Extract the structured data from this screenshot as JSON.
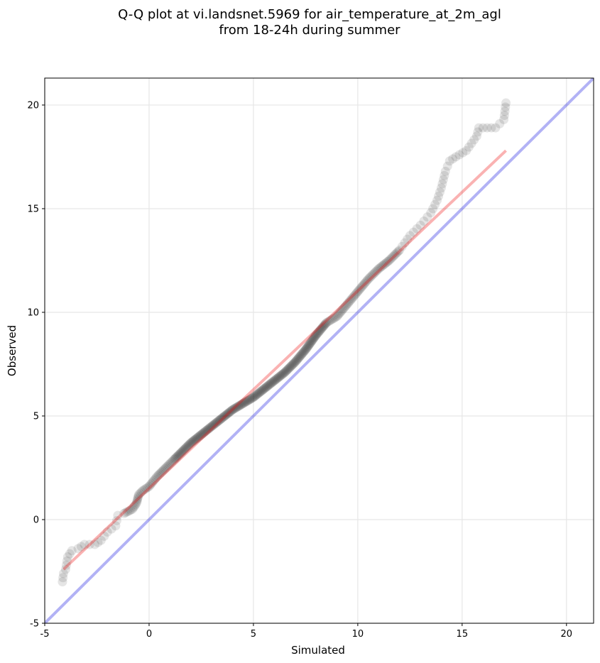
{
  "chart_data": {
    "type": "scatter",
    "title_lines": [
      "Q-Q plot at vi.landsnet.5969 for air_temperature_at_2m_agl",
      "from 18-24h during summer"
    ],
    "xlabel": "Simulated",
    "ylabel": "Observed",
    "xlim": [
      -5,
      21.3
    ],
    "ylim": [
      -5,
      21.3
    ],
    "xticks": [
      -5,
      0,
      5,
      10,
      15,
      20
    ],
    "yticks": [
      -5,
      0,
      5,
      10,
      15,
      20
    ],
    "grid": true,
    "points_color": "#000000",
    "points_opacity": 0.1,
    "reference_line": {
      "color": "#0000dd",
      "opacity": 0.3,
      "slope": 1,
      "intercept": 0
    },
    "fit_line": {
      "color": "#ee0000",
      "opacity": 0.3,
      "x": [
        -4.1,
        17.1
      ],
      "y": [
        -2.4,
        17.8
      ]
    },
    "quantile_curve": [
      [
        -4.15,
        -3.0
      ],
      [
        -4.1,
        -2.6
      ],
      [
        -4.0,
        -2.4
      ],
      [
        -3.9,
        -1.8
      ],
      [
        -3.7,
        -1.5
      ],
      [
        -3.4,
        -1.4
      ],
      [
        -3.1,
        -1.2
      ],
      [
        -2.6,
        -1.2
      ],
      [
        -2.3,
        -1.0
      ],
      [
        -2.0,
        -0.6
      ],
      [
        -1.6,
        -0.3
      ],
      [
        -1.5,
        0.2
      ],
      [
        -1.2,
        0.3
      ],
      [
        -0.8,
        0.5
      ],
      [
        -0.6,
        0.8
      ],
      [
        -0.5,
        1.2
      ],
      [
        -0.3,
        1.4
      ],
      [
        0.0,
        1.6
      ],
      [
        0.4,
        2.1
      ],
      [
        0.8,
        2.5
      ],
      [
        1.2,
        2.9
      ],
      [
        1.6,
        3.3
      ],
      [
        2.0,
        3.7
      ],
      [
        2.5,
        4.1
      ],
      [
        3.0,
        4.5
      ],
      [
        3.5,
        4.9
      ],
      [
        4.0,
        5.3
      ],
      [
        4.5,
        5.6
      ],
      [
        5.0,
        5.9
      ],
      [
        5.5,
        6.3
      ],
      [
        6.0,
        6.7
      ],
      [
        6.5,
        7.1
      ],
      [
        7.0,
        7.6
      ],
      [
        7.5,
        8.2
      ],
      [
        8.0,
        8.9
      ],
      [
        8.5,
        9.5
      ],
      [
        9.0,
        9.8
      ],
      [
        9.5,
        10.4
      ],
      [
        10.0,
        11.0
      ],
      [
        10.5,
        11.6
      ],
      [
        11.0,
        12.1
      ],
      [
        11.5,
        12.5
      ],
      [
        12.0,
        13.0
      ],
      [
        12.5,
        13.7
      ],
      [
        13.0,
        14.2
      ],
      [
        13.5,
        14.8
      ],
      [
        13.8,
        15.4
      ],
      [
        14.0,
        16.0
      ],
      [
        14.2,
        16.8
      ],
      [
        14.4,
        17.3
      ],
      [
        14.7,
        17.5
      ],
      [
        15.2,
        17.8
      ],
      [
        15.7,
        18.5
      ],
      [
        15.8,
        18.9
      ],
      [
        16.6,
        18.9
      ],
      [
        16.8,
        19.1
      ],
      [
        17.0,
        19.3
      ],
      [
        17.1,
        20.1
      ]
    ]
  }
}
